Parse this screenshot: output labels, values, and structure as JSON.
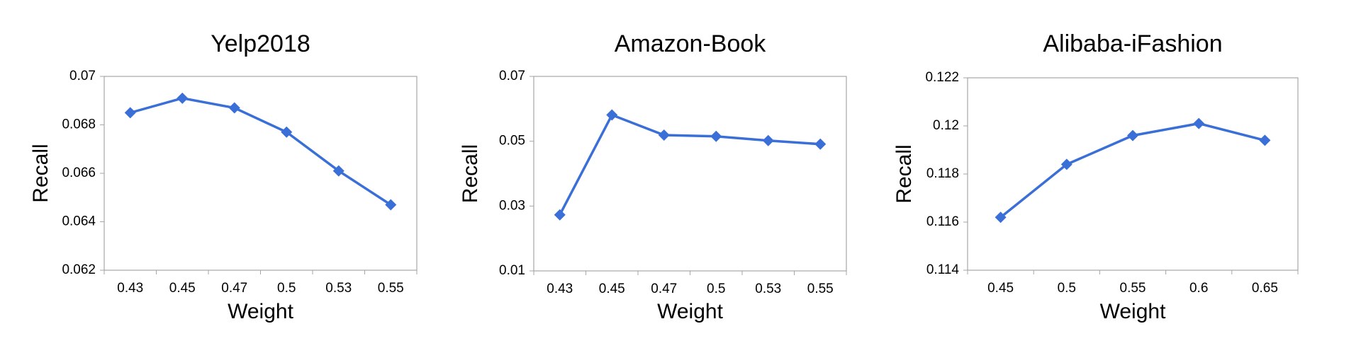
{
  "chart_data": [
    {
      "type": "line",
      "title": "Yelp2018",
      "x_label": "Weight",
      "y_label": "Recall",
      "categories": [
        "0.43",
        "0.45",
        "0.47",
        "0.5",
        "0.53",
        "0.55"
      ],
      "values": [
        0.0685,
        0.0691,
        0.0687,
        0.0677,
        0.0661,
        0.0647
      ],
      "color": "#3a6fd8",
      "ylim": [
        0.062,
        0.07
      ],
      "yticks": [
        0.062,
        0.064,
        0.066,
        0.068,
        0.07
      ]
    },
    {
      "type": "line",
      "title": "Amazon-Book",
      "x_label": "Weight",
      "y_label": "Recall",
      "categories": [
        "0.43",
        "0.45",
        "0.47",
        "0.5",
        "0.53",
        "0.55"
      ],
      "values": [
        0.0273,
        0.0581,
        0.0519,
        0.0515,
        0.0502,
        0.0491
      ],
      "color": "#3a6fd8",
      "ylim": [
        0.01,
        0.07
      ],
      "yticks": [
        0.01,
        0.03,
        0.05,
        0.07
      ]
    },
    {
      "type": "line",
      "title": "Alibaba-iFashion",
      "x_label": "Weight",
      "y_label": "Recall",
      "categories": [
        "0.45",
        "0.5",
        "0.55",
        "0.6",
        "0.65"
      ],
      "values": [
        0.1162,
        0.1184,
        0.1196,
        0.1201,
        0.1194
      ],
      "color": "#3a6fd8",
      "ylim": [
        0.114,
        0.122
      ],
      "yticks": [
        0.114,
        0.116,
        0.118,
        0.12,
        0.122
      ]
    }
  ]
}
